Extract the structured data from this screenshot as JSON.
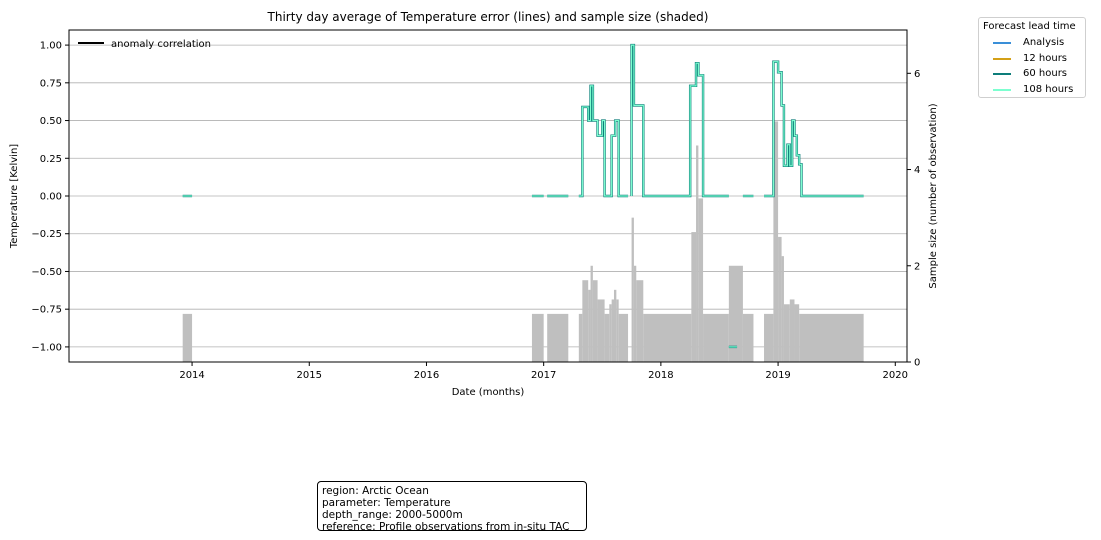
{
  "chart_data": {
    "type": "line",
    "title": "Thirty day average of Temperature error (lines) and sample size (shaded)",
    "xlabel": "Date (months)",
    "ylabel": "Temperature [Kelvin]",
    "y2label": "Sample size (number of observation)",
    "xlim": [
      2012.95,
      2020.1
    ],
    "ylim": [
      -1.1,
      1.1
    ],
    "y2lim": [
      0,
      6.9
    ],
    "x_ticks": [
      2014,
      2015,
      2016,
      2017,
      2018,
      2019,
      2020
    ],
    "x_tick_labels": [
      "2014",
      "2015",
      "2016",
      "2017",
      "2018",
      "2019",
      "2020"
    ],
    "y_ticks": [
      1.0,
      0.75,
      0.5,
      0.25,
      0.0,
      -0.25,
      -0.5,
      -0.75,
      -1.0
    ],
    "y_tick_labels": [
      "1.00",
      "0.75",
      "0.50",
      "0.25",
      "0.00",
      "−0.25",
      "−0.50",
      "−0.75",
      "−1.00"
    ],
    "y2_ticks": [
      0,
      2,
      4,
      6
    ],
    "y2_tick_labels": [
      "0",
      "2",
      "4",
      "6"
    ],
    "grid": "horizontal",
    "inner_legend": {
      "label": "anomaly correlation",
      "color": "#000000",
      "placement": "top-left"
    },
    "legend": {
      "title": "Forecast lead time",
      "placement": "outside-top-right",
      "entries": [
        {
          "label": "Analysis",
          "color": "#3a8fd8"
        },
        {
          "label": "12 hours",
          "color": "#d4a017"
        },
        {
          "label": "60 hours",
          "color": "#0d7d7a"
        },
        {
          "label": "108 hours",
          "color": "#7dffd0"
        }
      ]
    },
    "line_segments": [
      [
        [
          2013.92,
          0
        ],
        [
          2014.0,
          0
        ]
      ],
      [
        [
          2016.9,
          0
        ],
        [
          2017.0,
          0
        ]
      ],
      [
        [
          2017.03,
          0
        ],
        [
          2017.21,
          0
        ]
      ],
      [
        [
          2017.3,
          0
        ],
        [
          2017.33,
          0
        ],
        [
          2017.33,
          0.59
        ],
        [
          2017.38,
          0.59
        ],
        [
          2017.38,
          0.5
        ],
        [
          2017.4,
          0.5
        ],
        [
          2017.4,
          0.73
        ],
        [
          2017.42,
          0.73
        ],
        [
          2017.42,
          0.5
        ],
        [
          2017.46,
          0.5
        ],
        [
          2017.46,
          0.4
        ],
        [
          2017.5,
          0.4
        ],
        [
          2017.5,
          0.5
        ],
        [
          2017.52,
          0.5
        ],
        [
          2017.52,
          0.0
        ],
        [
          2017.58,
          0.0
        ],
        [
          2017.58,
          0.4
        ],
        [
          2017.61,
          0.4
        ],
        [
          2017.61,
          0.5
        ],
        [
          2017.64,
          0.5
        ],
        [
          2017.64,
          0.0
        ],
        [
          2017.72,
          0.0
        ]
      ],
      [
        [
          2017.75,
          0.0
        ],
        [
          2017.75,
          1.0
        ],
        [
          2017.77,
          1.0
        ],
        [
          2017.77,
          0.6
        ],
        [
          2017.85,
          0.6
        ],
        [
          2017.85,
          0.0
        ],
        [
          2018.25,
          0.0
        ],
        [
          2018.25,
          0.73
        ],
        [
          2018.3,
          0.73
        ],
        [
          2018.3,
          0.88
        ],
        [
          2018.32,
          0.88
        ],
        [
          2018.32,
          0.8
        ],
        [
          2018.36,
          0.8
        ],
        [
          2018.36,
          0.0
        ],
        [
          2018.58,
          0.0
        ]
      ],
      [
        [
          2018.7,
          0
        ],
        [
          2018.79,
          0
        ]
      ],
      [
        [
          2018.88,
          0.0
        ],
        [
          2018.96,
          0.0
        ],
        [
          2018.96,
          0.89
        ],
        [
          2019.0,
          0.89
        ],
        [
          2019.0,
          0.82
        ],
        [
          2019.03,
          0.82
        ],
        [
          2019.03,
          0.6
        ],
        [
          2019.05,
          0.6
        ],
        [
          2019.05,
          0.2
        ],
        [
          2019.08,
          0.2
        ],
        [
          2019.08,
          0.34
        ],
        [
          2019.1,
          0.34
        ],
        [
          2019.1,
          0.2
        ],
        [
          2019.12,
          0.2
        ],
        [
          2019.12,
          0.5
        ],
        [
          2019.14,
          0.5
        ],
        [
          2019.14,
          0.4
        ],
        [
          2019.16,
          0.4
        ],
        [
          2019.16,
          0.27
        ],
        [
          2019.18,
          0.27
        ],
        [
          2019.18,
          0.21
        ],
        [
          2019.2,
          0.21
        ],
        [
          2019.2,
          0.0
        ],
        [
          2019.73,
          0.0
        ]
      ],
      [
        [
          2018.58,
          -1.0
        ],
        [
          2018.65,
          -1.0
        ]
      ]
    ],
    "sample_size_bars": [
      {
        "x0": 2013.92,
        "x1": 2014.0,
        "value": 1
      },
      {
        "x0": 2016.9,
        "x1": 2017.0,
        "value": 1
      },
      {
        "x0": 2017.03,
        "x1": 2017.21,
        "value": 1
      },
      {
        "x0": 2017.3,
        "x1": 2017.33,
        "value": 1
      },
      {
        "x0": 2017.33,
        "x1": 2017.38,
        "value": 1.7
      },
      {
        "x0": 2017.38,
        "x1": 2017.4,
        "value": 1.5
      },
      {
        "x0": 2017.4,
        "x1": 2017.42,
        "value": 2
      },
      {
        "x0": 2017.42,
        "x1": 2017.46,
        "value": 1.7
      },
      {
        "x0": 2017.46,
        "x1": 2017.52,
        "value": 1.3
      },
      {
        "x0": 2017.52,
        "x1": 2017.56,
        "value": 1
      },
      {
        "x0": 2017.56,
        "x1": 2017.58,
        "value": 1.2
      },
      {
        "x0": 2017.58,
        "x1": 2017.6,
        "value": 1.3
      },
      {
        "x0": 2017.6,
        "x1": 2017.62,
        "value": 1.5
      },
      {
        "x0": 2017.62,
        "x1": 2017.64,
        "value": 1.3
      },
      {
        "x0": 2017.64,
        "x1": 2017.72,
        "value": 1
      },
      {
        "x0": 2017.75,
        "x1": 2017.77,
        "value": 3
      },
      {
        "x0": 2017.77,
        "x1": 2017.79,
        "value": 2
      },
      {
        "x0": 2017.79,
        "x1": 2017.85,
        "value": 1.7
      },
      {
        "x0": 2017.85,
        "x1": 2018.26,
        "value": 1
      },
      {
        "x0": 2018.26,
        "x1": 2018.3,
        "value": 2.7
      },
      {
        "x0": 2018.3,
        "x1": 2018.32,
        "value": 4.5
      },
      {
        "x0": 2018.32,
        "x1": 2018.36,
        "value": 3.4
      },
      {
        "x0": 2018.36,
        "x1": 2018.58,
        "value": 1
      },
      {
        "x0": 2018.58,
        "x1": 2018.7,
        "value": 2
      },
      {
        "x0": 2018.7,
        "x1": 2018.79,
        "value": 1
      },
      {
        "x0": 2018.88,
        "x1": 2018.96,
        "value": 1
      },
      {
        "x0": 2018.96,
        "x1": 2019.0,
        "value": 5
      },
      {
        "x0": 2019.0,
        "x1": 2019.03,
        "value": 2.6
      },
      {
        "x0": 2019.03,
        "x1": 2019.05,
        "value": 2.2
      },
      {
        "x0": 2019.05,
        "x1": 2019.1,
        "value": 1.2
      },
      {
        "x0": 2019.1,
        "x1": 2019.14,
        "value": 1.3
      },
      {
        "x0": 2019.14,
        "x1": 2019.18,
        "value": 1.2
      },
      {
        "x0": 2019.18,
        "x1": 2019.73,
        "value": 1
      }
    ]
  },
  "info_box": {
    "lines": [
      "region: Arctic Ocean",
      "parameter: Temperature",
      "depth_range: 2000-5000m",
      "reference: Profile observations from in-situ TAC"
    ]
  },
  "colors": {
    "bar_fill": "#bfbfbf",
    "line_outer": "#0d7d7a",
    "line_inner": "#7dffd0",
    "grid": "#b0b0b0"
  }
}
